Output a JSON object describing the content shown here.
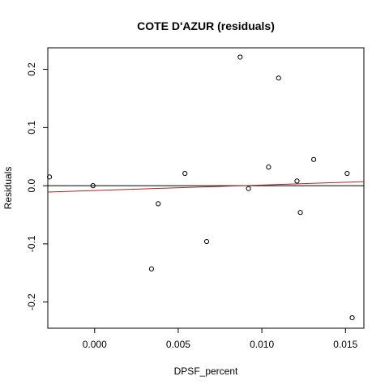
{
  "chart_data": {
    "type": "scatter",
    "title": "COTE D'AZUR (residuals)",
    "xlabel": "DPSF_percent",
    "ylabel": "Residuals",
    "xlim": [
      -0.0028,
      0.0161
    ],
    "ylim": [
      -0.245,
      0.237
    ],
    "x_ticks": [
      0.0,
      0.005,
      0.01,
      0.015
    ],
    "x_tick_labels": [
      "0.000",
      "0.005",
      "0.010",
      "0.015"
    ],
    "y_ticks": [
      -0.2,
      -0.1,
      0.0,
      0.1,
      0.2
    ],
    "y_tick_labels": [
      "-0.2",
      "-0.1",
      "0.0",
      "0.1",
      "0.2"
    ],
    "points": [
      {
        "x": -0.0027,
        "y": 0.015
      },
      {
        "x": -0.0001,
        "y": 0.0
      },
      {
        "x": 0.0034,
        "y": -0.143
      },
      {
        "x": 0.0038,
        "y": -0.031
      },
      {
        "x": 0.0054,
        "y": 0.021
      },
      {
        "x": 0.0067,
        "y": -0.096
      },
      {
        "x": 0.0087,
        "y": 0.221
      },
      {
        "x": 0.0092,
        "y": -0.005
      },
      {
        "x": 0.0104,
        "y": 0.032
      },
      {
        "x": 0.011,
        "y": 0.185
      },
      {
        "x": 0.0121,
        "y": 0.008
      },
      {
        "x": 0.0123,
        "y": -0.046
      },
      {
        "x": 0.0131,
        "y": 0.045
      },
      {
        "x": 0.0151,
        "y": 0.021
      },
      {
        "x": 0.0154,
        "y": -0.227
      }
    ],
    "reference_lines": [
      {
        "kind": "horizontal",
        "y": 0.0,
        "color": "#000000"
      },
      {
        "kind": "fit",
        "x1": -0.0028,
        "y1": -0.011,
        "x2": 0.0161,
        "y2": 0.007,
        "color": "#b22222"
      }
    ],
    "grid": false,
    "legend": "none"
  }
}
